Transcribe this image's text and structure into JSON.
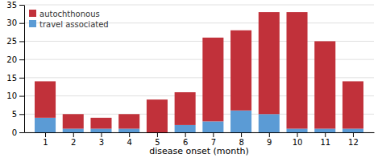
{
  "chart_data": {
    "type": "bar",
    "stacked": true,
    "xlabel": "disease onset (month)",
    "x": [
      1,
      2,
      3,
      4,
      5,
      6,
      7,
      8,
      9,
      10,
      11,
      12
    ],
    "series": [
      {
        "name": "travel associated",
        "color": "#5b9bd5",
        "values": [
          4,
          1,
          1,
          1,
          0,
          2,
          3,
          6,
          5,
          1,
          1,
          1
        ]
      },
      {
        "name": "autochthonous",
        "color": "#c1313a",
        "values": [
          10,
          4,
          3,
          4,
          9,
          9,
          23,
          22,
          28,
          32,
          24,
          13
        ]
      }
    ],
    "xlim": [
      0.25,
      12.75
    ],
    "xticks": [
      1,
      2,
      3,
      4,
      5,
      6,
      7,
      8,
      9,
      10,
      11,
      12
    ],
    "ylim": [
      0,
      35
    ],
    "yticks": [
      0,
      5,
      10,
      15,
      20,
      25,
      30,
      35
    ],
    "grid": true,
    "legend": "upper left"
  }
}
